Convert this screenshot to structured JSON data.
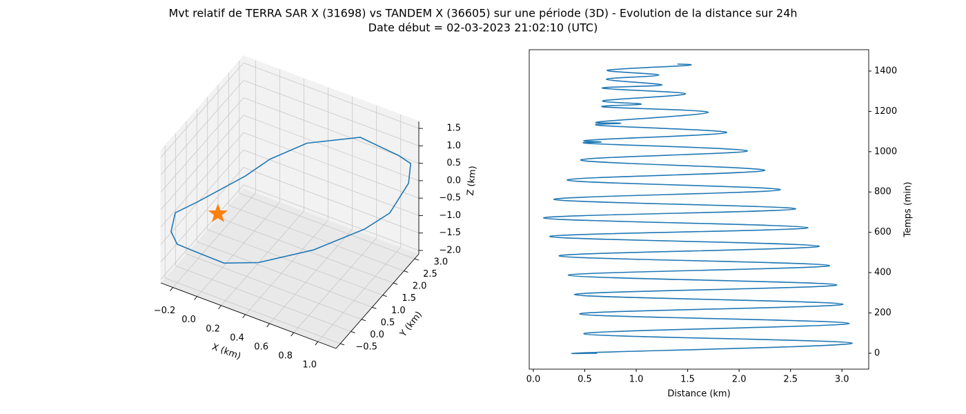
{
  "title": "Mvt relatif de TERRA SAR X (31698) vs TANDEM X (36605) sur une période (3D) - Evolution de la distance sur 24h",
  "subtitle": "Date début = 02-03-2023 21:02:10 (UTC)",
  "chart_data": [
    {
      "type": "line3d",
      "xlabel": "X (km)",
      "ylabel": "Y (km)",
      "zlabel": "Z (km)",
      "xlim": [
        -0.3,
        1.15
      ],
      "ylim": [
        -0.7,
        3.2
      ],
      "zlim": [
        -2.1,
        1.7
      ],
      "xticks": [
        {
          "value": -0.2,
          "label": "−0.2"
        },
        {
          "value": 0,
          "label": "0.0"
        },
        0.2,
        0.4,
        0.6,
        0.8,
        {
          "value": 1,
          "label": "1.0"
        }
      ],
      "yticks": [
        {
          "value": -0.5,
          "label": "−0.5"
        },
        {
          "value": 0,
          "label": "0.0"
        },
        0.5,
        {
          "value": 1,
          "label": "1.0"
        },
        1.5,
        {
          "value": 2,
          "label": "2.0"
        },
        2.5,
        {
          "value": 3,
          "label": "3.0"
        }
      ],
      "zticks": [
        1.5,
        {
          "value": 1,
          "label": "1.0"
        },
        0.5,
        {
          "value": 0,
          "label": "0.0"
        },
        {
          "value": -0.5,
          "label": "−0.5"
        },
        {
          "value": -1,
          "label": "−1.0"
        },
        {
          "value": -1.5,
          "label": "−1.5"
        },
        {
          "value": -2,
          "label": "−2.0"
        }
      ],
      "grid": true,
      "series": [
        {
          "color": "#1f77b4",
          "marker": "none",
          "x": [
            -0.15,
            0.1,
            0.2,
            0.4,
            0.7,
            1.0,
            1.1,
            1.1,
            1.05,
            1.0,
            0.7,
            0.35,
            0.1,
            -0.1,
            -0.2,
            -0.25,
            -0.25,
            -0.15
          ],
          "y": [
            0.2,
            1.0,
            1.6,
            2.2,
            3.0,
            3.1,
            3.1,
            3.0,
            2.4,
            1.5,
            0.8,
            0.2,
            0.0,
            -0.3,
            -0.5,
            -0.5,
            -0.3,
            0.2
          ],
          "z": [
            -0.2,
            0.3,
            0.5,
            0.8,
            0.8,
            0.6,
            0.5,
            0.0,
            -0.5,
            -0.4,
            -0.9,
            -1.3,
            -1.5,
            -1.2,
            -1.0,
            -0.7,
            -0.3,
            -0.2
          ]
        },
        {
          "color": "#ff7f0e",
          "marker": "star",
          "x": [
            0.05
          ],
          "y": [
            0
          ],
          "z": [
            -0.15
          ]
        }
      ]
    },
    {
      "type": "line",
      "xlabel": "Distance (km)",
      "ylabel": "Temps (min)",
      "xlim": [
        -0.04,
        3.26
      ],
      "ylim": [
        -79,
        1506
      ],
      "xticks": [
        {
          "value": 0,
          "label": "0.0"
        },
        0.5,
        {
          "value": 1,
          "label": "1.0"
        },
        1.5,
        {
          "value": 2,
          "label": "2.0"
        },
        2.5,
        {
          "value": 3,
          "label": "3.0"
        }
      ],
      "yticks": [
        0,
        200,
        400,
        600,
        800,
        1000,
        1200,
        1400
      ],
      "yaxis_side": "right",
      "grid": false,
      "x": [
        0.62,
        0.54,
        3.1,
        0.49,
        3.07,
        0.45,
        3.01,
        0.4,
        2.95,
        0.34,
        2.88,
        0.25,
        2.78,
        0.16,
        2.67,
        0.1,
        2.55,
        0.2,
        2.4,
        0.33,
        2.25,
        0.46,
        2.08,
        0.57,
        0.66,
        0.56,
        1.88,
        0.65,
        0.85,
        0.64,
        1.7,
        0.68,
        1.05,
        0.68,
        1.48,
        0.67,
        1.25,
        0.71,
        1.22,
        0.72,
        1.5,
        1.4
      ],
      "series": [
        {
          "color": "#1f77b4",
          "values": [
            0,
            3,
            50,
            97,
            148,
            195,
            243,
            291,
            339,
            387,
            435,
            483,
            531,
            579,
            623,
            671,
            716,
            763,
            811,
            859,
            907,
            958,
            1003,
            1040,
            1048,
            1058,
            1095,
            1130,
            1141,
            1148,
            1195,
            1222,
            1236,
            1253,
            1287,
            1315,
            1331,
            1359,
            1380,
            1404,
            1428,
            1435
          ]
        }
      ]
    }
  ]
}
